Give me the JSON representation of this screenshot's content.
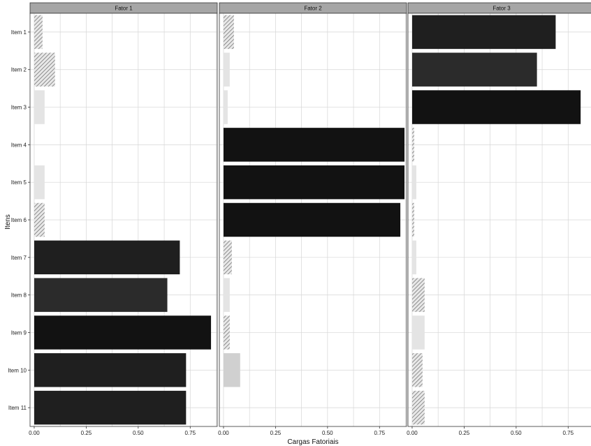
{
  "chart_data": {
    "type": "bar",
    "orientation": "horizontal",
    "xlabel": "Cargas Fatoriais",
    "ylabel": "Itens",
    "xlim": [
      -0.02,
      0.88
    ],
    "x_ticks": [
      "0.00",
      "0.25",
      "0.50",
      "0.75"
    ],
    "x_tick_values": [
      0,
      0.25,
      0.5,
      0.75
    ],
    "grid": true,
    "categories": [
      "Item 1",
      "Item 2",
      "Item 3",
      "Item 4",
      "Item 5",
      "Item 6",
      "Item 7",
      "Item 8",
      "Item 9",
      "Item 10",
      "Item 11"
    ],
    "panels": [
      {
        "name": "Fator 1",
        "values": [
          0.04,
          0.1,
          0.05,
          0.0,
          0.05,
          0.05,
          0.7,
          0.64,
          0.85,
          0.73,
          0.73
        ],
        "hatched": [
          true,
          true,
          false,
          false,
          false,
          true,
          false,
          false,
          false,
          false,
          false
        ]
      },
      {
        "name": "Fator 2",
        "values": [
          0.05,
          0.03,
          0.02,
          0.87,
          0.87,
          0.85,
          0.04,
          0.03,
          0.03,
          0.08,
          0.0
        ],
        "hatched": [
          true,
          false,
          false,
          false,
          false,
          false,
          true,
          false,
          true,
          false,
          false
        ]
      },
      {
        "name": "Fator 3",
        "values": [
          0.69,
          0.6,
          0.81,
          0.01,
          0.02,
          0.01,
          0.02,
          0.06,
          0.06,
          0.05,
          0.06
        ],
        "hatched": [
          false,
          false,
          false,
          true,
          false,
          true,
          false,
          true,
          false,
          true,
          true
        ]
      }
    ]
  }
}
